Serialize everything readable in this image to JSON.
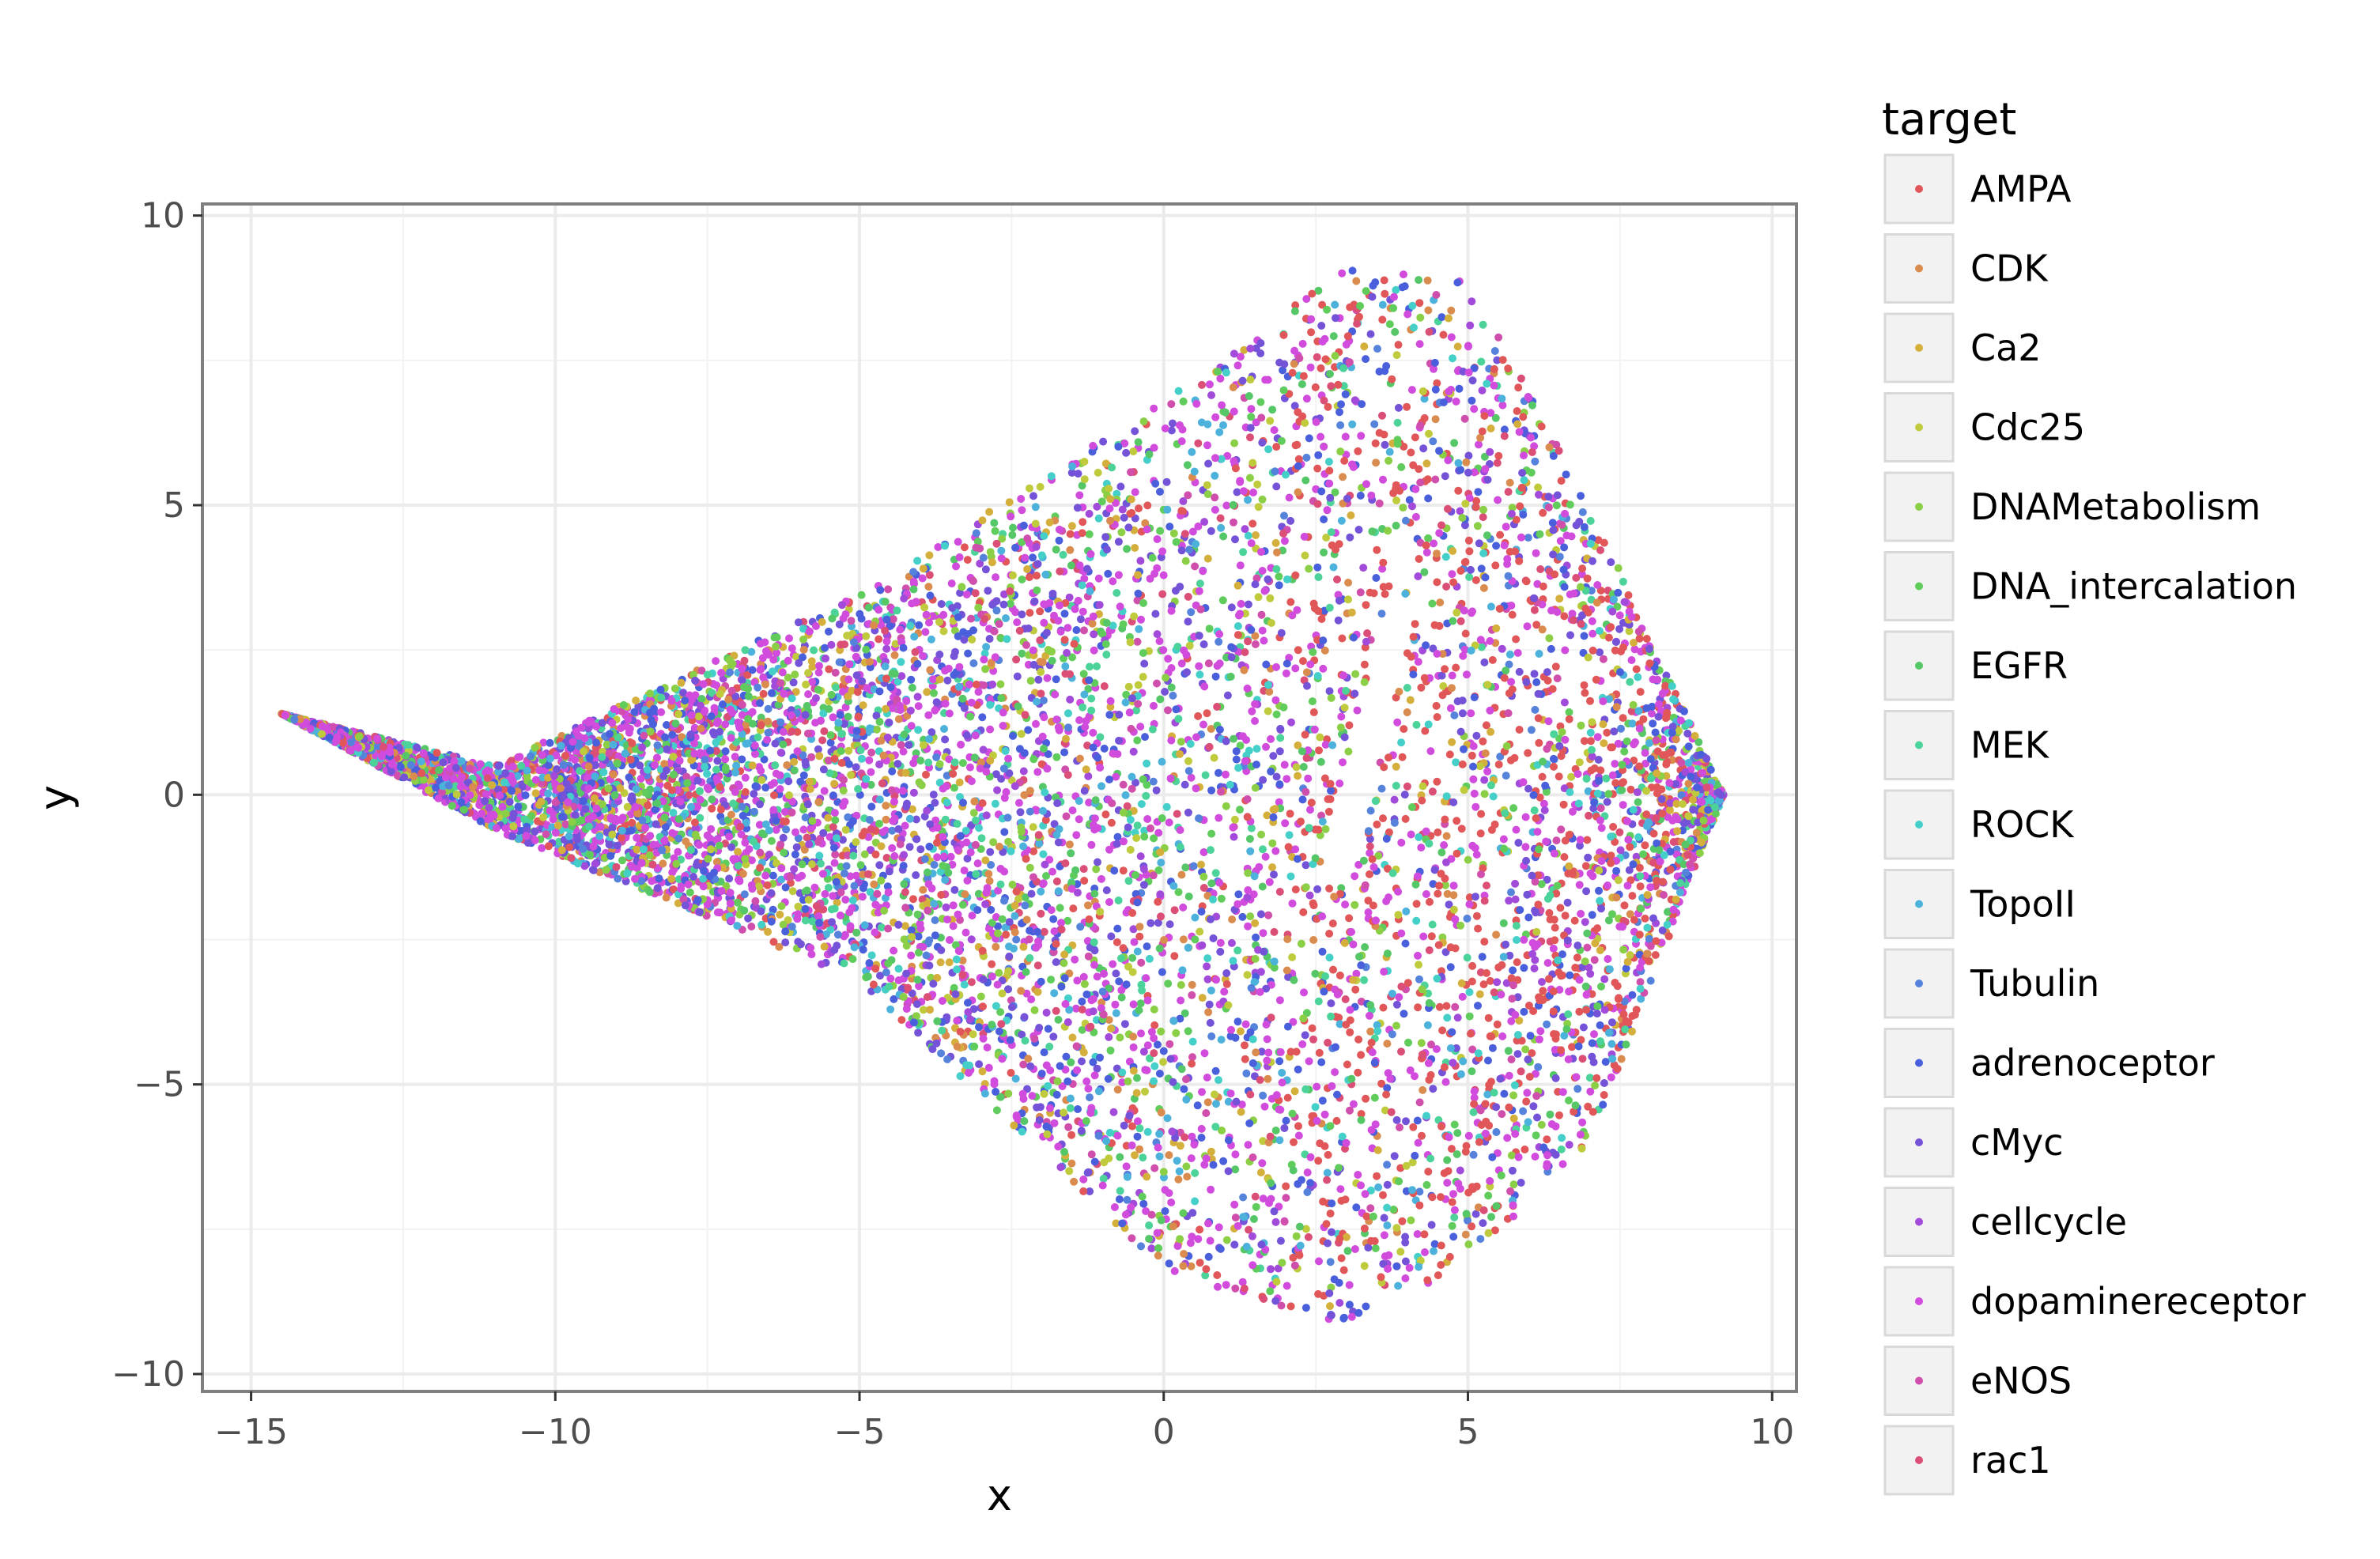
{
  "chart_data": {
    "type": "scatter",
    "title": "",
    "xlabel": "x",
    "ylabel": "y",
    "xlim": [
      -15.8,
      10.4
    ],
    "ylim": [
      -10.3,
      10.2
    ],
    "xticks": [
      -15,
      -10,
      -5,
      0,
      5,
      10
    ],
    "yticks": [
      -10,
      -5,
      0,
      5,
      10
    ],
    "xtick_labels": [
      "−15",
      "−10",
      "−5",
      "0",
      "5",
      "10"
    ],
    "ytick_labels": [
      "−10",
      "−5",
      "0",
      "5",
      "10"
    ],
    "grid": true,
    "legend": {
      "title": "target",
      "position": "right"
    },
    "series": [
      {
        "name": "AMPA",
        "color": "#E15759"
      },
      {
        "name": "CDK",
        "color": "#D98C4E"
      },
      {
        "name": "Ca2",
        "color": "#D5AF3C"
      },
      {
        "name": "Cdc25",
        "color": "#BFCB3D"
      },
      {
        "name": "DNAMetabolism",
        "color": "#8ACF45"
      },
      {
        "name": "DNA_intercalation",
        "color": "#5FCC5B"
      },
      {
        "name": "EGFR",
        "color": "#55C766"
      },
      {
        "name": "MEK",
        "color": "#4BD39A"
      },
      {
        "name": "ROCK",
        "color": "#45CFC9"
      },
      {
        "name": "TopoII",
        "color": "#4CB2DB"
      },
      {
        "name": "Tubulin",
        "color": "#5583DC"
      },
      {
        "name": "adrenoceptor",
        "color": "#4A5FDB"
      },
      {
        "name": "cMyc",
        "color": "#7453D9"
      },
      {
        "name": "cellcycle",
        "color": "#A24BDA"
      },
      {
        "name": "dopaminereceptor",
        "color": "#D14CDD"
      },
      {
        "name": "eNOS",
        "color": "#D04FAC"
      },
      {
        "name": "rac1",
        "color": "#DB4F77"
      }
    ],
    "point_cloud": {
      "description_shape": "teardrop",
      "tip": [
        -14.5,
        1.4
      ],
      "x_range": [
        -14.5,
        9.2
      ],
      "y_range": [
        -9.4,
        9.2
      ],
      "n_points": 9000
    }
  }
}
